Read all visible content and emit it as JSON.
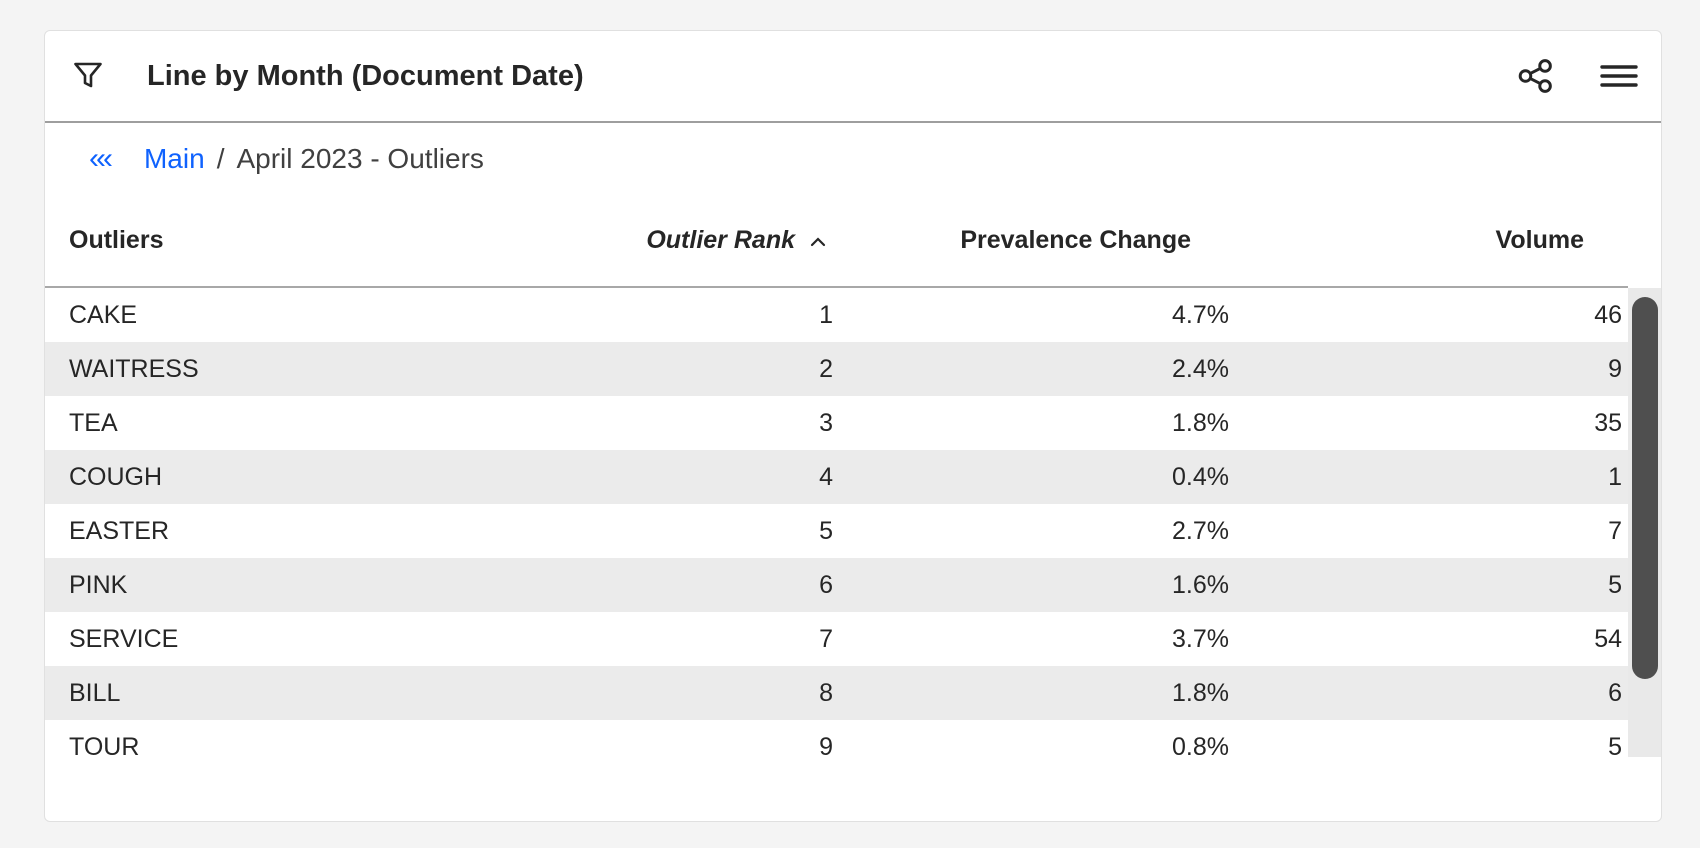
{
  "widget": {
    "title": "Line by Month (Document Date)",
    "icons": {
      "filter": "filter-funnel",
      "share": "share-network",
      "menu": "hamburger-menu"
    }
  },
  "breadcrumb": {
    "back_glyph": "‹‹‹",
    "root": "Main",
    "separator": "/",
    "current": "April 2023 - Outliers"
  },
  "table": {
    "columns": [
      {
        "label": "Outliers",
        "align": "left",
        "sorted": false
      },
      {
        "label": "Outlier Rank",
        "align": "right",
        "sorted": true,
        "sort_dir": "ascending"
      },
      {
        "label": "Prevalence Change",
        "align": "right",
        "sorted": false
      },
      {
        "label": "Volume",
        "align": "right",
        "sorted": false
      }
    ],
    "rows": [
      [
        "CAKE",
        "1",
        "4.7%",
        "46"
      ],
      [
        "WAITRESS",
        "2",
        "2.4%",
        "9"
      ],
      [
        "TEA",
        "3",
        "1.8%",
        "35"
      ],
      [
        "COUGH",
        "4",
        "0.4%",
        "1"
      ],
      [
        "EASTER",
        "5",
        "2.7%",
        "7"
      ],
      [
        "PINK",
        "6",
        "1.6%",
        "5"
      ],
      [
        "SERVICE",
        "7",
        "3.7%",
        "54"
      ],
      [
        "BILL",
        "8",
        "1.8%",
        "6"
      ],
      [
        "TOUR",
        "9",
        "0.8%",
        "5"
      ]
    ]
  },
  "colors": {
    "accent_blue": "#0f62fe",
    "text": "#262626",
    "row_stripe": "#ebebeb",
    "scrollbar_thumb": "#4f4f4f",
    "page_background": "#f4f4f4"
  }
}
